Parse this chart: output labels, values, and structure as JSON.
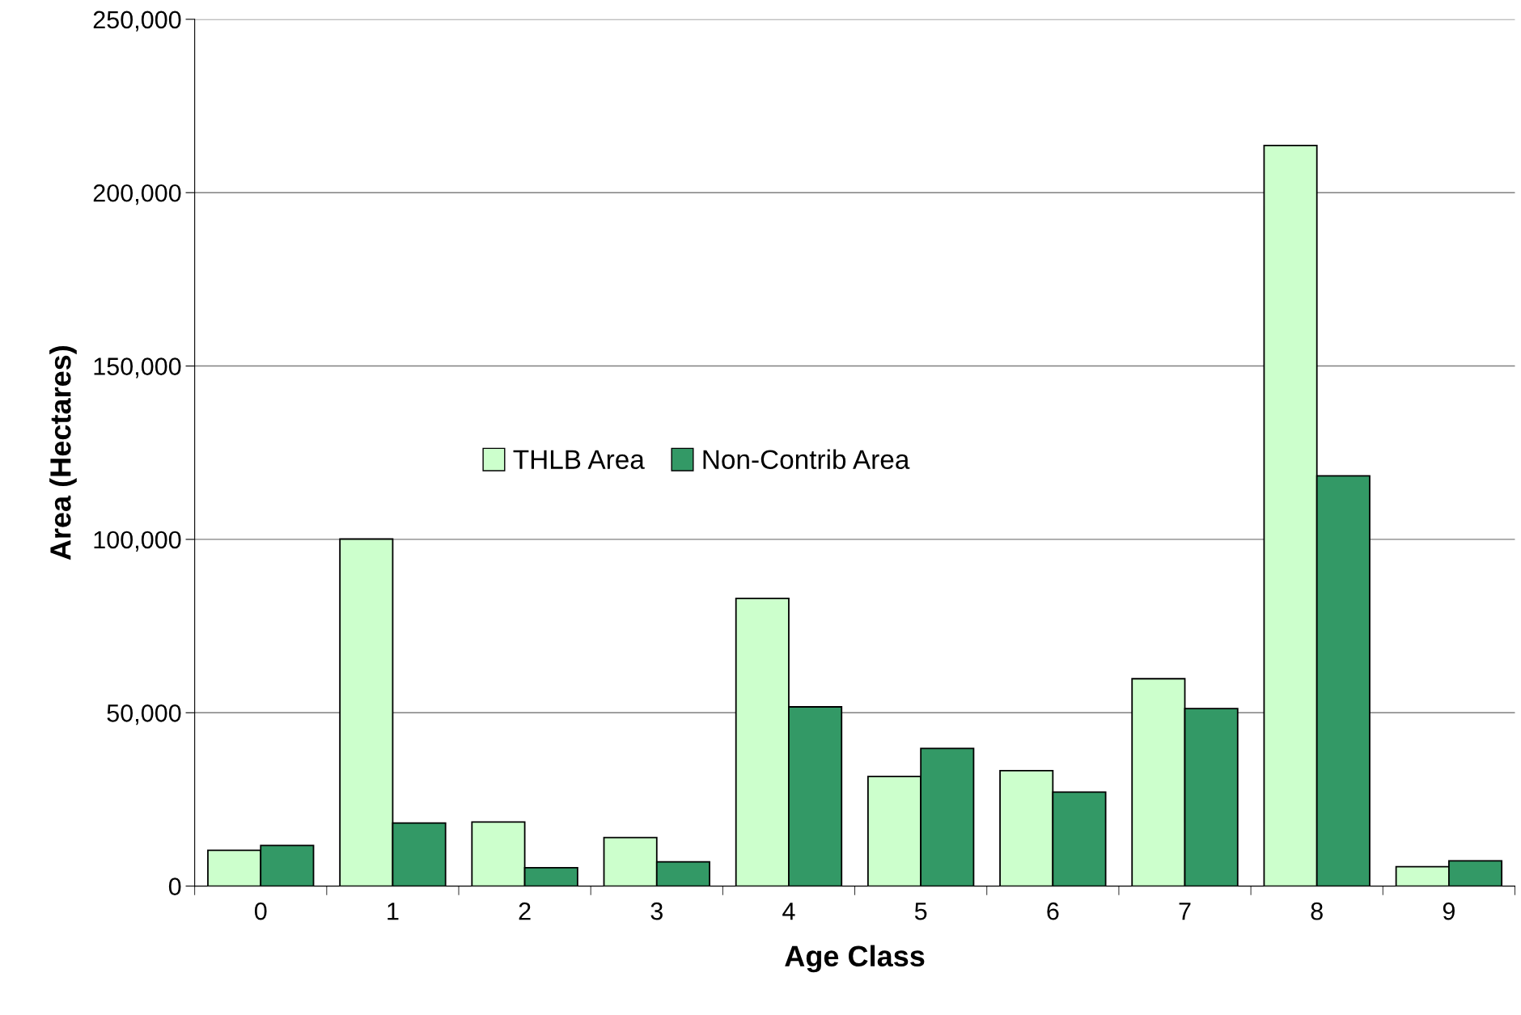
{
  "chart_data": {
    "type": "bar",
    "xlabel": "Age Class",
    "ylabel": "Area (Hectares)",
    "categories": [
      "0",
      "1",
      "2",
      "3",
      "4",
      "5",
      "6",
      "7",
      "8",
      "9"
    ],
    "series": [
      {
        "name": "THLB Area",
        "color": "#ccffcc",
        "values": [
          10300,
          100100,
          18500,
          14000,
          83000,
          31600,
          33300,
          59800,
          213600,
          5600
        ]
      },
      {
        "name": "Non-Contrib Area",
        "color": "#339966",
        "values": [
          11700,
          18200,
          5300,
          7000,
          51700,
          39700,
          27100,
          51200,
          118300,
          7300
        ]
      }
    ],
    "ylim": [
      0,
      250000
    ],
    "yticks": [
      {
        "value": 0,
        "label": "0"
      },
      {
        "value": 50000,
        "label": "50,000"
      },
      {
        "value": 100000,
        "label": "100,000"
      },
      {
        "value": 150000,
        "label": "150,000"
      },
      {
        "value": 200000,
        "label": "200,000"
      },
      {
        "value": 250000,
        "label": "250,000"
      }
    ],
    "grid": "y",
    "legend": "center"
  }
}
